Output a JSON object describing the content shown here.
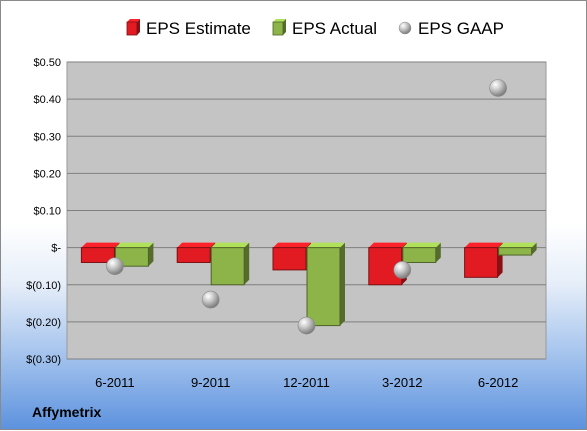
{
  "company": "Affymetrix",
  "chart_data": {
    "type": "bar",
    "categories": [
      "6-2011",
      "9-2011",
      "12-2011",
      "3-2012",
      "6-2012"
    ],
    "series": [
      {
        "name": "EPS Estimate",
        "kind": "bar",
        "color": "#e21b22",
        "values": [
          -0.04,
          -0.04,
          -0.06,
          -0.1,
          -0.08
        ]
      },
      {
        "name": "EPS Actual",
        "kind": "bar",
        "color": "#8db448",
        "values": [
          -0.05,
          -0.1,
          -0.21,
          -0.04,
          -0.02
        ]
      },
      {
        "name": "EPS GAAP",
        "kind": "scatter",
        "color": "#b5b5b5",
        "values": [
          -0.05,
          -0.14,
          -0.21,
          -0.06,
          0.43
        ]
      }
    ],
    "ylim": [
      -0.3,
      0.5
    ],
    "yticks": [
      0.5,
      0.4,
      0.3,
      0.2,
      0.1,
      0,
      -0.1,
      -0.2,
      -0.3
    ],
    "ytick_labels": [
      "$0.50",
      "$0.40",
      "$0.30",
      "$0.20",
      "$0.10",
      "$-",
      "$(0.10)",
      "$(0.20)",
      "$(0.30)"
    ],
    "grid": true,
    "legend_position": "top"
  }
}
